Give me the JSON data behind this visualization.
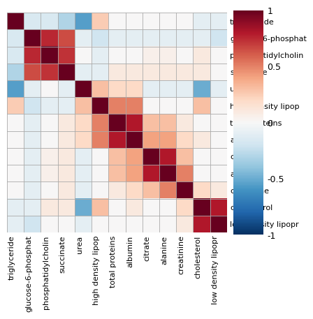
{
  "labels": [
    "triglyceride",
    "glucose-6-phosphat",
    "phosphatidylcholin",
    "succinate",
    "urea",
    "high density lipop",
    "total proteins",
    "albumin",
    "citrate",
    "alanine",
    "creatinine",
    "cholesterol",
    "low density lipopr"
  ],
  "corr_matrix": [
    [
      1.0,
      -0.15,
      -0.15,
      -0.3,
      -0.55,
      0.25,
      0.0,
      0.0,
      0.0,
      0.0,
      0.0,
      -0.1,
      -0.1
    ],
    [
      -0.15,
      1.0,
      0.75,
      0.65,
      -0.1,
      -0.2,
      -0.1,
      -0.1,
      -0.1,
      -0.1,
      -0.1,
      -0.1,
      -0.2
    ],
    [
      -0.15,
      0.75,
      1.0,
      0.72,
      0.0,
      -0.1,
      0.0,
      0.0,
      0.05,
      0.05,
      0.0,
      0.1,
      0.0
    ],
    [
      -0.3,
      0.65,
      0.72,
      1.0,
      -0.1,
      -0.1,
      0.1,
      0.1,
      0.1,
      0.1,
      0.1,
      0.1,
      0.0
    ],
    [
      -0.55,
      -0.1,
      0.0,
      -0.1,
      1.0,
      0.3,
      0.2,
      0.2,
      -0.1,
      -0.1,
      -0.1,
      -0.5,
      -0.1
    ],
    [
      0.25,
      -0.2,
      -0.1,
      -0.1,
      0.3,
      1.0,
      0.5,
      0.5,
      0.0,
      0.0,
      0.0,
      0.3,
      0.0
    ],
    [
      0.0,
      -0.1,
      0.0,
      0.1,
      0.2,
      0.5,
      1.0,
      0.8,
      0.3,
      0.3,
      0.1,
      0.0,
      0.0
    ],
    [
      0.0,
      -0.1,
      0.0,
      0.1,
      0.2,
      0.5,
      0.8,
      1.0,
      0.4,
      0.4,
      0.2,
      0.1,
      0.0
    ],
    [
      0.0,
      -0.1,
      0.05,
      0.1,
      -0.1,
      0.0,
      0.3,
      0.4,
      1.0,
      0.8,
      0.3,
      0.0,
      0.0
    ],
    [
      0.0,
      -0.1,
      0.05,
      0.1,
      -0.1,
      0.0,
      0.3,
      0.4,
      0.8,
      1.0,
      0.5,
      0.0,
      0.0
    ],
    [
      0.0,
      -0.1,
      0.0,
      0.1,
      -0.1,
      0.0,
      0.1,
      0.2,
      0.3,
      0.5,
      1.0,
      0.2,
      0.1
    ],
    [
      -0.1,
      -0.1,
      0.1,
      0.1,
      -0.5,
      0.3,
      0.0,
      0.1,
      0.0,
      0.0,
      0.2,
      1.0,
      0.8
    ],
    [
      -0.1,
      -0.2,
      0.0,
      0.0,
      -0.1,
      0.0,
      0.0,
      0.0,
      0.0,
      0.0,
      0.1,
      0.8,
      1.0
    ]
  ],
  "cmap": "RdBu_r",
  "vmin": -1,
  "vmax": 1,
  "grid_color": "#aaaaaa",
  "background_color": "#ffffff",
  "tick_fontsize": 8.0,
  "colorbar_ticks": [
    1,
    0.5,
    0,
    -0.5,
    -1
  ],
  "colorbar_tick_labels": [
    "1",
    "0.5",
    "0",
    "-0.5",
    "-1"
  ],
  "colorbar_fontsize": 9
}
